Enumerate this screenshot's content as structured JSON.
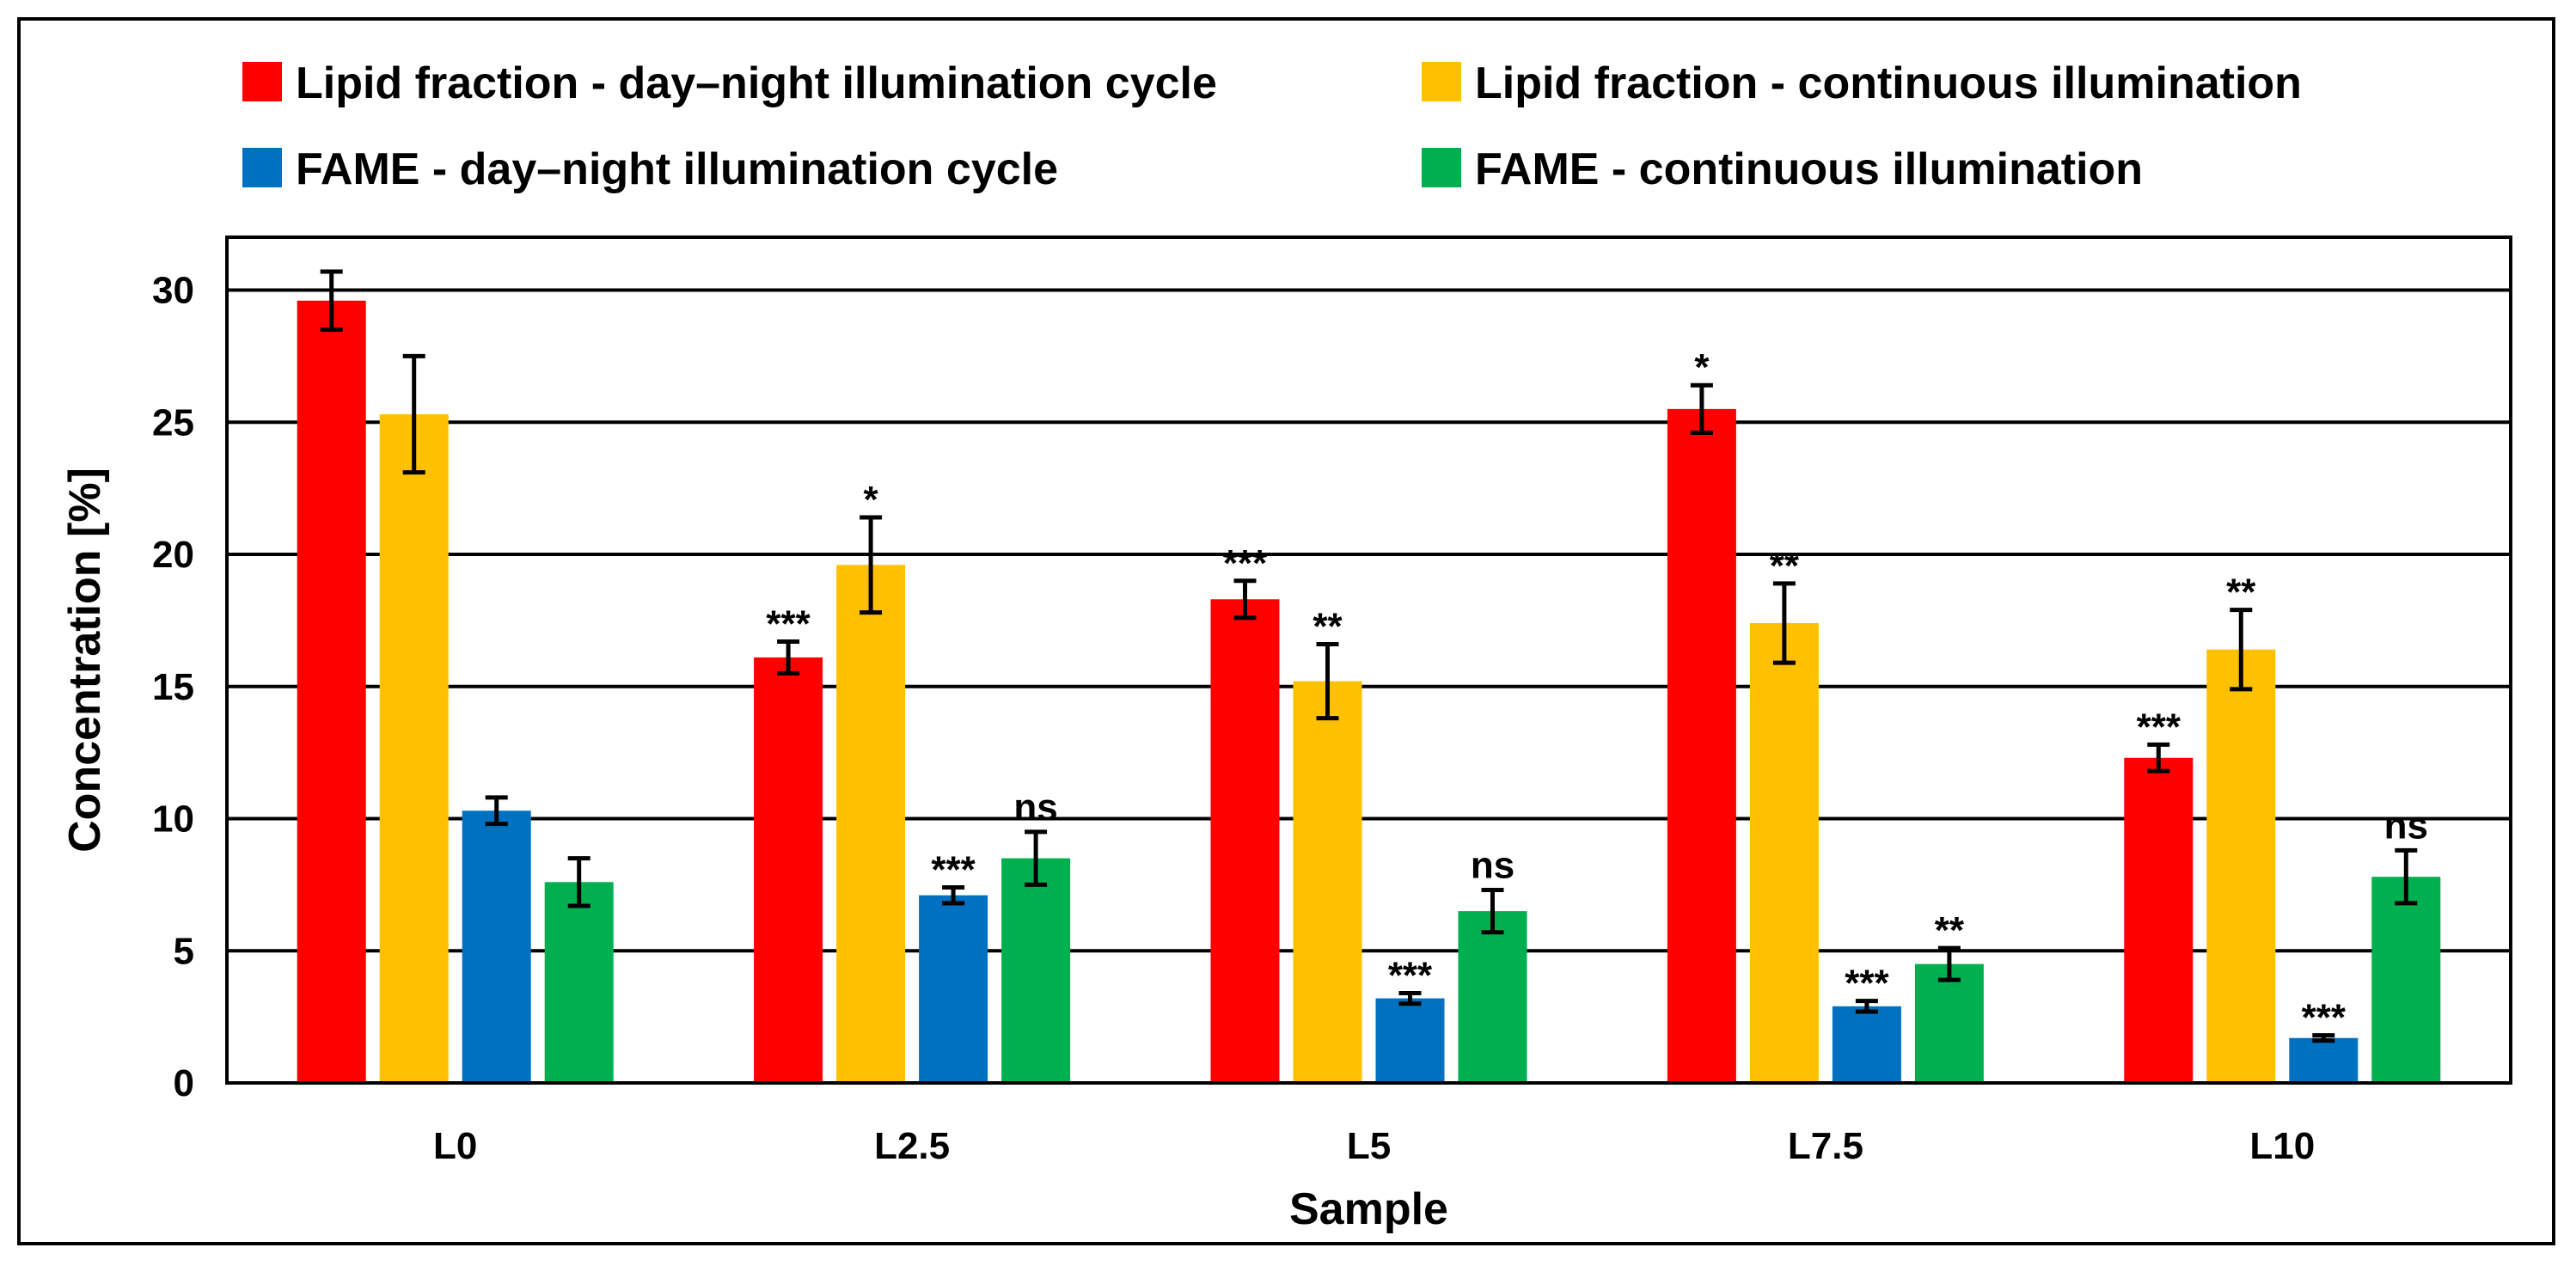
{
  "chart_data": {
    "type": "bar",
    "title": "",
    "xlabel": "Sample",
    "ylabel": "Concentration [%]",
    "ylim": [
      0,
      32
    ],
    "yticks": [
      0,
      5,
      10,
      15,
      20,
      25,
      30
    ],
    "grid": true,
    "legend_position": "top",
    "categories": [
      "L0",
      "L2.5",
      "L5",
      "L7.5",
      "L10"
    ],
    "series": [
      {
        "name": "Lipid fraction - day–night illumination cycle",
        "color": "#ff0000",
        "values": [
          29.6,
          16.1,
          18.3,
          25.5,
          12.3
        ],
        "errors": [
          1.1,
          0.6,
          0.7,
          0.9,
          0.5
        ],
        "significance": [
          "",
          "***",
          "***",
          "*",
          "***"
        ]
      },
      {
        "name": "Lipid fraction - continuous illumination",
        "color": "#ffc000",
        "values": [
          25.3,
          19.6,
          15.2,
          17.4,
          16.4
        ],
        "errors": [
          2.2,
          1.8,
          1.4,
          1.5,
          1.5
        ],
        "significance": [
          "",
          "*",
          "**",
          "**",
          "**"
        ]
      },
      {
        "name": "FAME - day–night illumination cycle",
        "color": "#0070c0",
        "values": [
          10.3,
          7.1,
          3.2,
          2.9,
          1.7
        ],
        "errors": [
          0.5,
          0.3,
          0.2,
          0.2,
          0.1
        ],
        "significance": [
          "",
          "***",
          "***",
          "***",
          "***"
        ]
      },
      {
        "name": "FAME - continuous illumination",
        "color": "#00b050",
        "values": [
          7.6,
          8.5,
          6.5,
          4.5,
          7.8
        ],
        "errors": [
          0.9,
          1.0,
          0.8,
          0.6,
          1.0
        ],
        "significance": [
          "",
          "ns",
          "ns",
          "**",
          "ns"
        ]
      }
    ]
  }
}
